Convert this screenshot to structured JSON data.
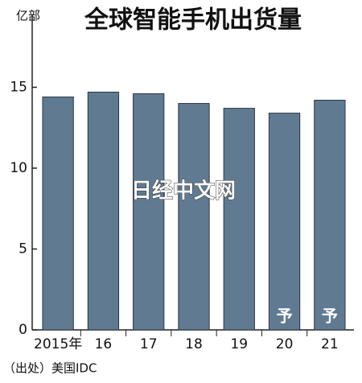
{
  "chart_data": {
    "type": "bar",
    "title": "全球智能手机出货量",
    "y_label": "亿部",
    "categories": [
      "2015年",
      "16",
      "17",
      "18",
      "19",
      "20",
      "21"
    ],
    "values": [
      14.4,
      14.7,
      14.6,
      14.0,
      13.7,
      13.4,
      14.2
    ],
    "color": "#607a92",
    "ylim": [
      0,
      19.5
    ],
    "yticks": [
      0,
      5,
      10,
      15
    ],
    "grid": false,
    "annotations": [
      {
        "text": "予",
        "category": "20"
      },
      {
        "text": "予",
        "category": "21"
      }
    ],
    "watermark": "日经中文网",
    "source": "（出处）美国IDC"
  }
}
